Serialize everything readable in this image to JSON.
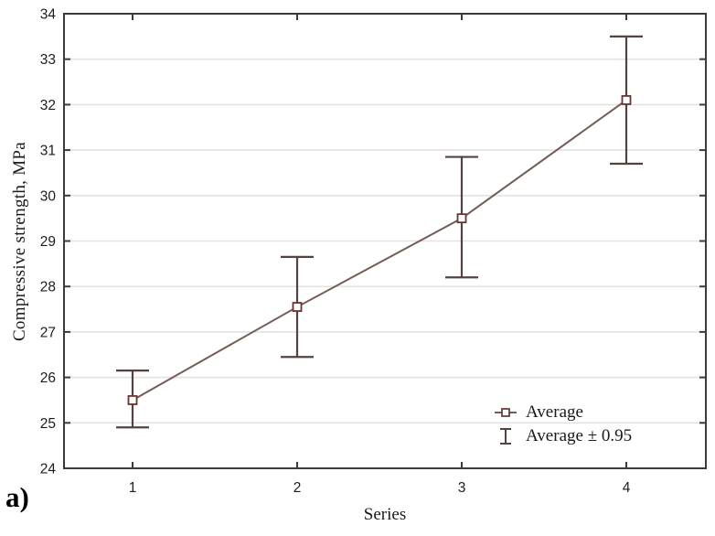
{
  "figure": {
    "panel_label": "a)"
  },
  "chart_data": {
    "type": "line",
    "title": "",
    "xlabel": "Series",
    "ylabel": "Compressive strength, MPa",
    "x": [
      1,
      2,
      3,
      4
    ],
    "series": [
      {
        "name": "Average",
        "values": [
          25.5,
          27.55,
          29.5,
          32.1
        ],
        "ci_low": [
          24.9,
          26.45,
          28.2,
          30.7
        ],
        "ci_high": [
          26.15,
          28.65,
          30.85,
          33.5
        ]
      }
    ],
    "xlim": [
      0.58,
      4.5
    ],
    "ylim": [
      24,
      34
    ],
    "xticks": [
      1,
      2,
      3,
      4
    ],
    "yticks": [
      24,
      25,
      26,
      27,
      28,
      29,
      30,
      31,
      32,
      33,
      34
    ],
    "grid": "horizontal",
    "legend_position": "inside-bottom-right",
    "legend": [
      {
        "label": "Average",
        "icon": "square-marker-icon"
      },
      {
        "label": "Average ± 0.95",
        "icon": "error-bar-icon"
      }
    ],
    "colors": {
      "line": "#735c56",
      "error_bar": "#544240",
      "marker": "#6a3431",
      "marker_fill": "#ffffff",
      "grid": "#e3e3e3",
      "frame": "#3b3b3b",
      "text": "#1c1c1c"
    }
  }
}
